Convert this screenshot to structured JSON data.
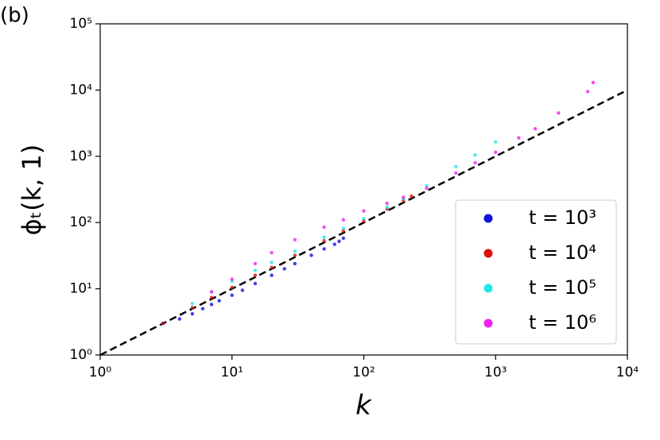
{
  "chart_data": {
    "type": "scatter",
    "panel_label": "(b)",
    "xlabel": "k",
    "ylabel": "ϕₜ(k, 1)",
    "xscale": "log",
    "yscale": "log",
    "xlim": [
      1,
      10000
    ],
    "ylim": [
      1,
      100000
    ],
    "xticks": [
      {
        "value": 1,
        "label": "10⁰"
      },
      {
        "value": 10,
        "label": "10¹"
      },
      {
        "value": 100,
        "label": "10²"
      },
      {
        "value": 1000,
        "label": "10³"
      },
      {
        "value": 10000,
        "label": "10⁴"
      }
    ],
    "yticks": [
      {
        "value": 1,
        "label": "10⁰"
      },
      {
        "value": 10,
        "label": "10¹"
      },
      {
        "value": 100,
        "label": "10²"
      },
      {
        "value": 1000,
        "label": "10³"
      },
      {
        "value": 10000,
        "label": "10⁴"
      },
      {
        "value": 100000,
        "label": "10⁵"
      }
    ],
    "legend": "lower right",
    "reference_line": {
      "x": [
        1,
        10000
      ],
      "values": [
        1,
        10000
      ],
      "color": "#000000",
      "dashed": true
    },
    "series": [
      {
        "name": "t = 10³",
        "color": "#1010e0",
        "x": [
          3,
          4,
          5,
          6,
          7,
          8,
          10,
          12,
          15,
          20,
          25,
          30,
          40,
          50,
          60,
          65,
          70
        ],
        "values": [
          3,
          3.5,
          4.2,
          5,
          5.8,
          6.6,
          8,
          9.5,
          12,
          16,
          20,
          24,
          32,
          40,
          47,
          52,
          58
        ]
      },
      {
        "name": "t = 10⁴",
        "color": "#e01010",
        "x": [
          3,
          5,
          7,
          10,
          15,
          20,
          30,
          50,
          70,
          100,
          150,
          200,
          230
        ],
        "values": [
          3,
          5.2,
          7.4,
          10.5,
          16,
          21,
          32,
          53,
          75,
          106,
          160,
          215,
          250
        ]
      },
      {
        "name": "t = 10⁵",
        "color": "#20e8e8",
        "x": [
          5,
          7,
          10,
          15,
          20,
          30,
          50,
          70,
          100,
          150,
          200,
          300,
          500,
          700,
          1000
        ],
        "values": [
          6,
          9,
          13,
          19,
          25,
          37,
          60,
          82,
          115,
          170,
          230,
          360,
          700,
          1050,
          1650
        ]
      },
      {
        "name": "t = 10⁶",
        "color": "#f020f0",
        "x": [
          7,
          10,
          15,
          20,
          30,
          50,
          70,
          100,
          150,
          200,
          300,
          500,
          700,
          1000,
          1500,
          2000,
          3000,
          5000,
          5500
        ],
        "values": [
          9,
          14,
          24,
          35,
          55,
          85,
          110,
          150,
          195,
          240,
          330,
          560,
          800,
          1150,
          1900,
          2600,
          4500,
          9500,
          13000
        ]
      }
    ]
  }
}
